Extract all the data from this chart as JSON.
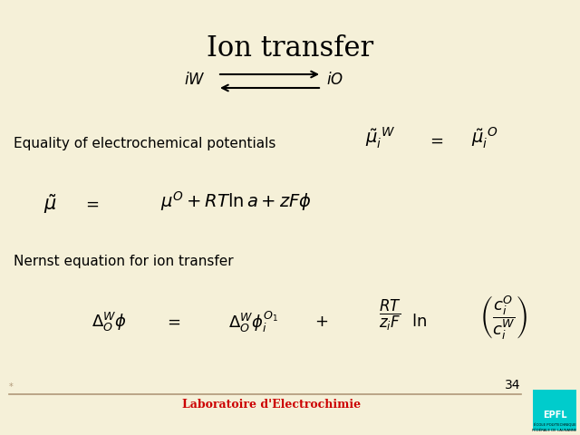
{
  "background_color": "#f5f0d8",
  "title": "Ion transfer",
  "title_fontsize": 22,
  "title_color": "#000000",
  "body_text_color": "#000000",
  "math_color": "#000000",
  "footer_line_color": "#b09878",
  "footer_text": "Laboratoire d'Electrochimie",
  "footer_text_color": "#cc0000",
  "footer_number": "34",
  "footer_number_color": "#000000",
  "eq1_label": "Equality of electrochemical potentials",
  "eq3_label": "Nernst equation for ion transfer"
}
